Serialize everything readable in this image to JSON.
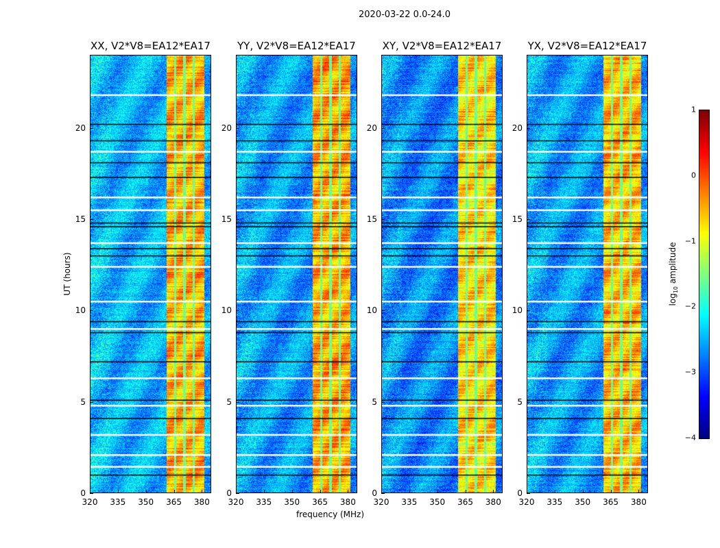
{
  "chart_data": {
    "type": "heatmap",
    "title": "2020-03-22 0.0-24.0",
    "xlabel": "frequency (MHz)",
    "ylabel": "UT (hours)",
    "xlim": [
      320,
      385
    ],
    "ylim": [
      0,
      24
    ],
    "xticks": [
      "320",
      "335",
      "350",
      "365",
      "380"
    ],
    "xtick_values": [
      320,
      335,
      350,
      365,
      380
    ],
    "yticks": [
      "0",
      "5",
      "10",
      "15",
      "20"
    ],
    "ytick_values": [
      0,
      5,
      10,
      15,
      20
    ],
    "panels": [
      {
        "title": "XX, V2*V8=EA12*EA17",
        "background_log10": -2.5,
        "band_log10": -0.5
      },
      {
        "title": "YY, V2*V8=EA12*EA17",
        "background_log10": -2.6,
        "band_log10": -0.45
      },
      {
        "title": "XY, V2*V8=EA12*EA17",
        "background_log10": -2.7,
        "band_log10": -0.7
      },
      {
        "title": "YX, V2*V8=EA12*EA17",
        "background_log10": -2.6,
        "band_log10": -0.55
      }
    ],
    "high_amplitude_band_mhz": [
      361,
      381
    ],
    "band_gaps_mhz": [
      365.5,
      370.5,
      375.5
    ],
    "flagged_white_hours": [
      21.8,
      18.7,
      16.2,
      15.5,
      13.7,
      12.4,
      10.5,
      9.0,
      6.3,
      4.8,
      3.2,
      2.1,
      1.45
    ],
    "flagged_black_hours": [
      20.2,
      19.3,
      18.1,
      17.3,
      14.8,
      14.6,
      13.4,
      13.0,
      9.4,
      8.8,
      7.2,
      5.1,
      4.1,
      1.0
    ],
    "colorbar": {
      "label": "log10 amplitude",
      "label_base": "log",
      "label_sub": "10",
      "label_rest": " amplitude",
      "range": [
        -4,
        1
      ],
      "ticks": [
        "1",
        "0",
        "−1",
        "−2",
        "−3",
        "−4"
      ],
      "tick_values": [
        1,
        0,
        -1,
        -2,
        -3,
        -4
      ],
      "colormap": "jet"
    }
  }
}
